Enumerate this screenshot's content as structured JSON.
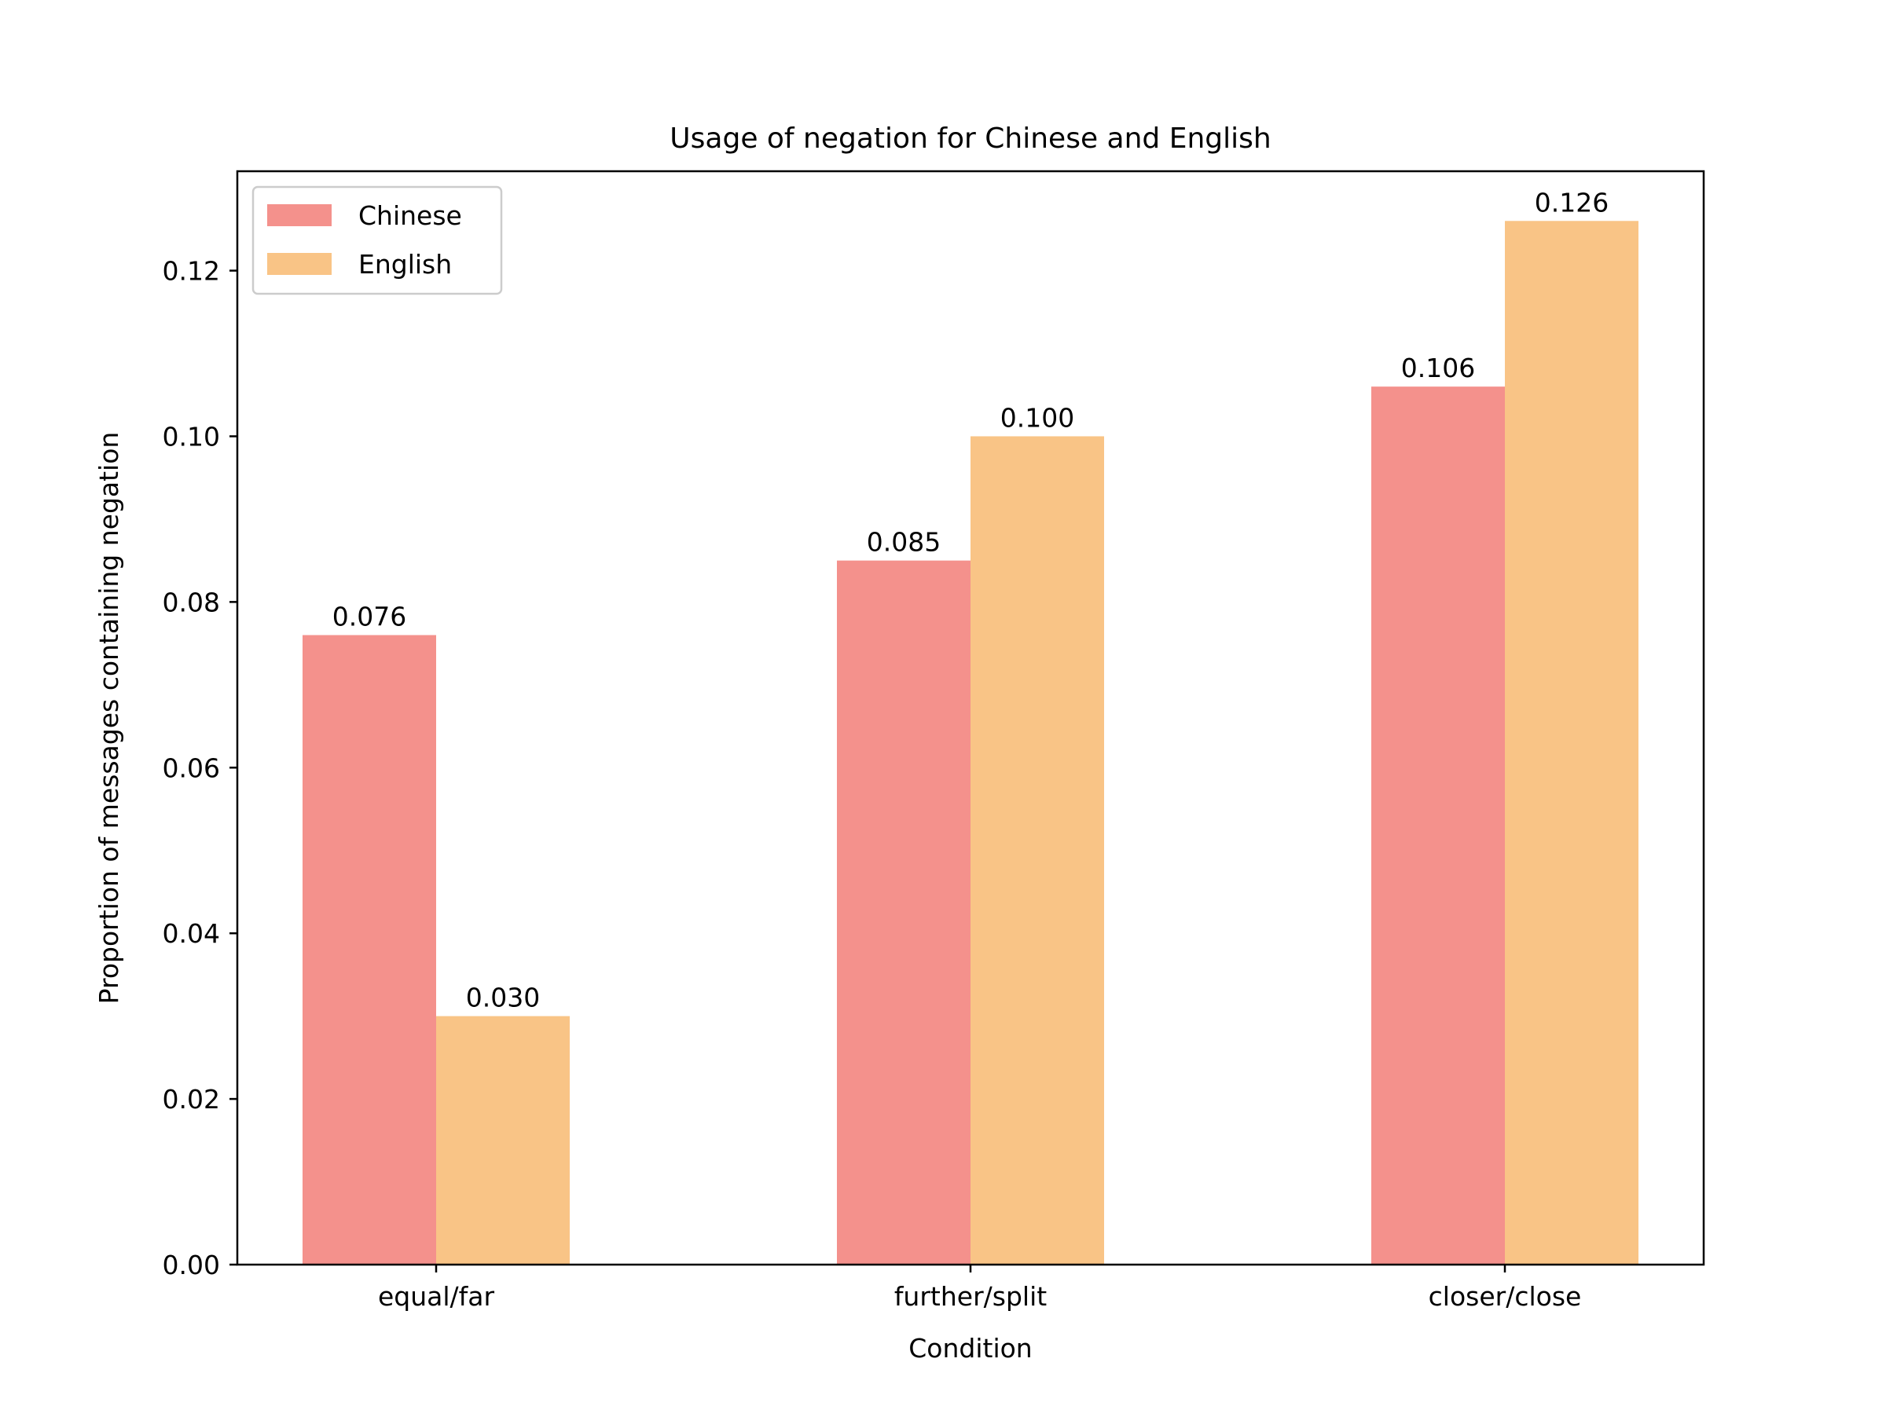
{
  "chart_data": {
    "type": "bar",
    "title": "Usage of negation for Chinese and English",
    "xlabel": "Condition",
    "ylabel": "Proportion of messages containing negation",
    "categories": [
      "equal/far",
      "further/split",
      "closer/close"
    ],
    "series": [
      {
        "name": "Chinese",
        "color": "#f4918c",
        "values": [
          0.076,
          0.085,
          0.106
        ],
        "labels": [
          "0.076",
          "0.085",
          "0.106"
        ]
      },
      {
        "name": "English",
        "color": "#f9c486",
        "values": [
          0.03,
          0.1,
          0.126
        ],
        "labels": [
          "0.030",
          "0.100",
          "0.126"
        ]
      }
    ],
    "ylim": [
      0,
      0.132
    ],
    "yticks": [
      0.0,
      0.02,
      0.04,
      0.06,
      0.08,
      0.1,
      0.12
    ],
    "ytick_labels": [
      "0.00",
      "0.02",
      "0.04",
      "0.06",
      "0.08",
      "0.10",
      "0.12"
    ],
    "grid": false,
    "legend_position": "top-left"
  }
}
